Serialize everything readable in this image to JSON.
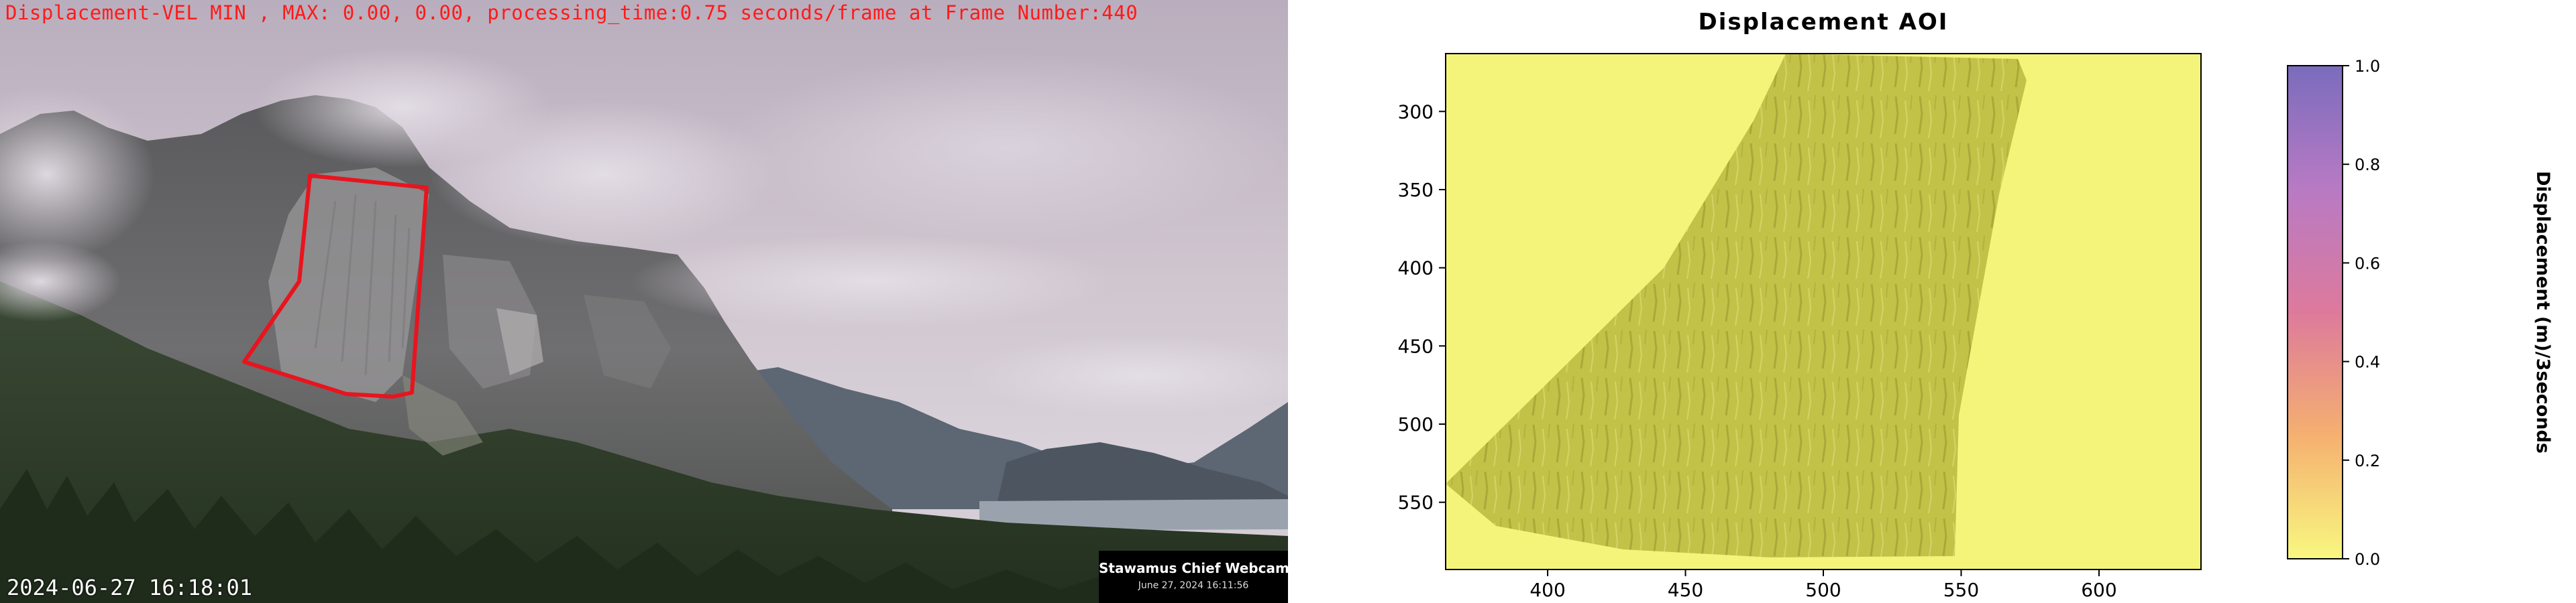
{
  "webcam": {
    "overlay_title": "Displacement-VEL MIN , MAX: 0.00, 0.00, processing_time:0.75 seconds/frame at Frame Number:440",
    "timestamp": "2024-06-27 16:18:01",
    "badge_name": "Stawamus Chief Webcam",
    "badge_date": "June 27, 2024 16:11:56",
    "aoi_outline_color": "#e8141e"
  },
  "chart_data": {
    "type": "heatmap",
    "title": "Displacement AOI",
    "xlabel": "",
    "ylabel": "",
    "xlim": [
      363,
      637
    ],
    "ylim": [
      593,
      263
    ],
    "x_ticks": [
      400,
      450,
      500,
      550,
      600
    ],
    "y_ticks": [
      300,
      350,
      400,
      450,
      500,
      550
    ],
    "colorbar": {
      "label": "Displacement (m)/3seconds",
      "range": [
        0.0,
        1.0
      ],
      "ticks": [
        0.0,
        0.2,
        0.4,
        0.6,
        0.8,
        1.0
      ],
      "colors": [
        "#f8f880",
        "#f5b070",
        "#dd7a9c",
        "#b87ac4",
        "#7a6cbc"
      ]
    },
    "field_min": 0.0,
    "field_max": 0.0,
    "background_color": "#f4f47a",
    "field_color": "#c2c248"
  }
}
